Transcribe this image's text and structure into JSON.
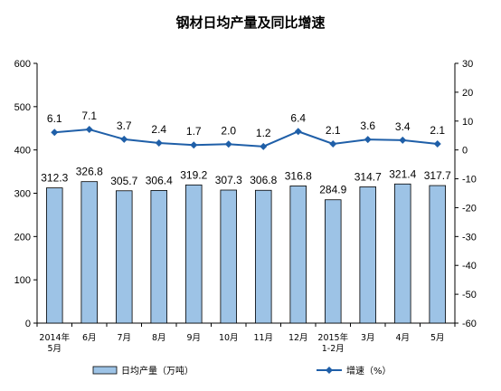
{
  "chart_data": {
    "type": "bar",
    "title": "钢材日均产量及同比增速",
    "categories": [
      "2014年\n5月",
      "6月",
      "7月",
      "8月",
      "9月",
      "10月",
      "11月",
      "12月",
      "2015年\n1-2月",
      "3月",
      "4月",
      "5月"
    ],
    "series": [
      {
        "name": "日均产量（万吨）",
        "type": "bar",
        "axis": "left",
        "color": "#9DC3E6",
        "values": [
          312.3,
          326.8,
          305.7,
          306.4,
          319.2,
          307.3,
          306.8,
          316.8,
          284.9,
          314.7,
          321.4,
          317.7
        ]
      },
      {
        "name": "增速（%）",
        "type": "line",
        "axis": "right",
        "color": "#1F5FA8",
        "values": [
          6.1,
          7.1,
          3.7,
          2.4,
          1.7,
          2.0,
          1.2,
          6.4,
          2.1,
          3.6,
          3.4,
          2.1
        ]
      }
    ],
    "y_left": {
      "ylim": [
        0,
        600
      ],
      "ticks": [
        0,
        100,
        200,
        300,
        400,
        500,
        600
      ]
    },
    "y_right": {
      "ylim": [
        -60,
        30
      ],
      "ticks": [
        -60,
        -50,
        -40,
        -30,
        -20,
        -10,
        0,
        10,
        20,
        30
      ]
    },
    "grid": false,
    "legend_position": "bottom"
  }
}
